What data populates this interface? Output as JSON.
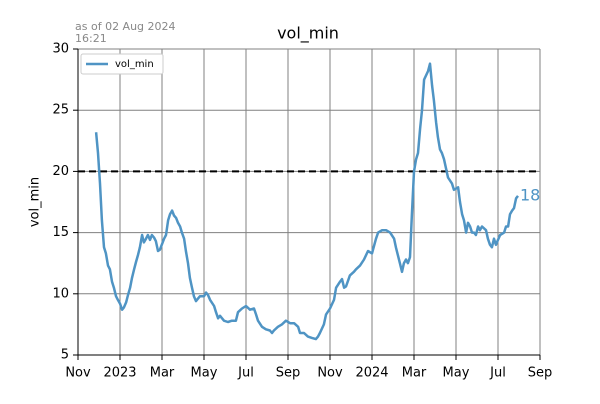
{
  "chart_data": {
    "type": "line",
    "title": "vol_min",
    "annotation": [
      "as of 02 Aug 2024",
      "16:21"
    ],
    "ylabel": "vol_min",
    "grid": true,
    "legend": "upper left",
    "xlim": [
      0,
      22
    ],
    "xticks": [
      {
        "value": 0,
        "label": "Nov"
      },
      {
        "value": 2,
        "label": "2023"
      },
      {
        "value": 4,
        "label": "Mar"
      },
      {
        "value": 6,
        "label": "May"
      },
      {
        "value": 8,
        "label": "Jul"
      },
      {
        "value": 10,
        "label": "Sep"
      },
      {
        "value": 12,
        "label": "Nov"
      },
      {
        "value": 14,
        "label": "2024"
      },
      {
        "value": 16,
        "label": "Mar"
      },
      {
        "value": 18,
        "label": "May"
      },
      {
        "value": 20,
        "label": "Jul"
      },
      {
        "value": 22,
        "label": "Sep"
      }
    ],
    "ylim": [
      5,
      30
    ],
    "yticks": [
      5,
      10,
      15,
      20,
      25,
      30
    ],
    "hline": 20,
    "end_label": 18,
    "x": [
      0.86,
      0.95,
      1.05,
      1.14,
      1.24,
      1.33,
      1.43,
      1.52,
      1.62,
      1.71,
      1.81,
      1.9,
      2,
      2.1,
      2.19,
      2.29,
      2.38,
      2.48,
      2.57,
      2.67,
      2.76,
      2.86,
      2.95,
      3.05,
      3.14,
      3.24,
      3.33,
      3.43,
      3.52,
      3.62,
      3.71,
      3.81,
      3.9,
      4.1,
      4.19,
      4.29,
      4.38,
      4.48,
      4.57,
      4.67,
      4.76,
      4.86,
      4.95,
      5.05,
      5.14,
      5.24,
      5.33,
      5.43,
      5.52,
      5.62,
      5.71,
      5.81,
      6,
      6.1,
      6.19,
      6.29,
      6.48,
      6.57,
      6.67,
      6.76,
      6.95,
      7.14,
      7.33,
      7.52,
      7.62,
      7.81,
      8,
      8.19,
      8.38,
      8.48,
      8.57,
      8.76,
      8.95,
      9.14,
      9.24,
      9.33,
      9.52,
      9.71,
      9.9,
      10.1,
      10.29,
      10.48,
      10.57,
      10.76,
      10.95,
      11.14,
      11.33,
      11.43,
      11.52,
      11.71,
      11.81,
      12,
      12.19,
      12.29,
      12.48,
      12.57,
      12.67,
      12.76,
      12.95,
      13.14,
      13.24,
      13.43,
      13.62,
      13.81,
      14,
      14.19,
      14.29,
      14.48,
      14.67,
      14.86,
      15.05,
      15.14,
      15.33,
      15.43,
      15.52,
      15.62,
      15.71,
      15.81,
      15.9,
      16,
      16.1,
      16.19,
      16.29,
      16.38,
      16.48,
      16.67,
      16.76,
      16.86,
      16.95,
      17.05,
      17.14,
      17.24,
      17.33,
      17.43,
      17.62,
      17.81,
      17.9,
      18.1,
      18.19,
      18.29,
      18.38,
      18.48,
      18.57,
      18.67,
      18.76,
      18.86,
      18.95,
      19.05,
      19.14,
      19.24,
      19.43,
      19.52,
      19.62,
      19.71,
      19.81,
      19.9,
      20.1,
      20.29,
      20.38,
      20.48,
      20.57,
      20.67,
      20.76,
      20.86,
      20.95
    ],
    "series": [
      {
        "name": "vol_min",
        "color": "#4f94c4",
        "values": [
          23.2,
          21.5,
          19,
          16,
          13.8,
          13.3,
          12.3,
          12,
          11,
          10.5,
          9.8,
          9.5,
          9.2,
          8.7,
          8.9,
          9.3,
          9.9,
          10.5,
          11.3,
          12,
          12.6,
          13.2,
          13.8,
          14.8,
          14.2,
          14.5,
          14.8,
          14.4,
          14.8,
          14.6,
          14.3,
          13.5,
          13.6,
          14.5,
          14.8,
          16,
          16.5,
          16.8,
          16.4,
          16.2,
          15.8,
          15.5,
          15,
          14.5,
          13.5,
          12.5,
          11.3,
          10.5,
          9.8,
          9.4,
          9.6,
          9.8,
          9.8,
          10.1,
          9.9,
          9.5,
          9,
          8.5,
          8,
          8.2,
          7.8,
          7.7,
          7.8,
          7.8,
          8.5,
          8.8,
          9,
          8.7,
          8.8,
          8.3,
          7.8,
          7.3,
          7.1,
          7,
          6.8,
          7,
          7.3,
          7.5,
          7.8,
          7.6,
          7.6,
          7.3,
          6.8,
          6.8,
          6.5,
          6.4,
          6.3,
          6.5,
          6.8,
          7.5,
          8.3,
          8.8,
          9.5,
          10.5,
          11,
          11.2,
          10.5,
          10.6,
          11.5,
          11.8,
          12,
          12.3,
          12.8,
          13.5,
          13.3,
          14.5,
          15,
          15.2,
          15.2,
          15,
          14.5,
          13.8,
          12.5,
          11.8,
          12.5,
          12.8,
          12.5,
          13,
          16.5,
          20,
          21,
          21.5,
          23.5,
          25,
          27.5,
          28.2,
          28.8,
          27,
          25.8,
          24,
          22.8,
          21.8,
          21.5,
          21,
          19.5,
          19,
          18.5,
          18.7,
          17.5,
          16.5,
          16,
          15,
          15.8,
          15.5,
          15,
          15,
          14.8,
          15.5,
          15.2,
          15.5,
          15.2,
          14.5,
          14,
          13.8,
          14.5,
          14,
          14.8,
          15,
          15.5,
          15.5,
          16.5,
          16.8,
          17,
          17.8,
          18
        ]
      }
    ]
  }
}
